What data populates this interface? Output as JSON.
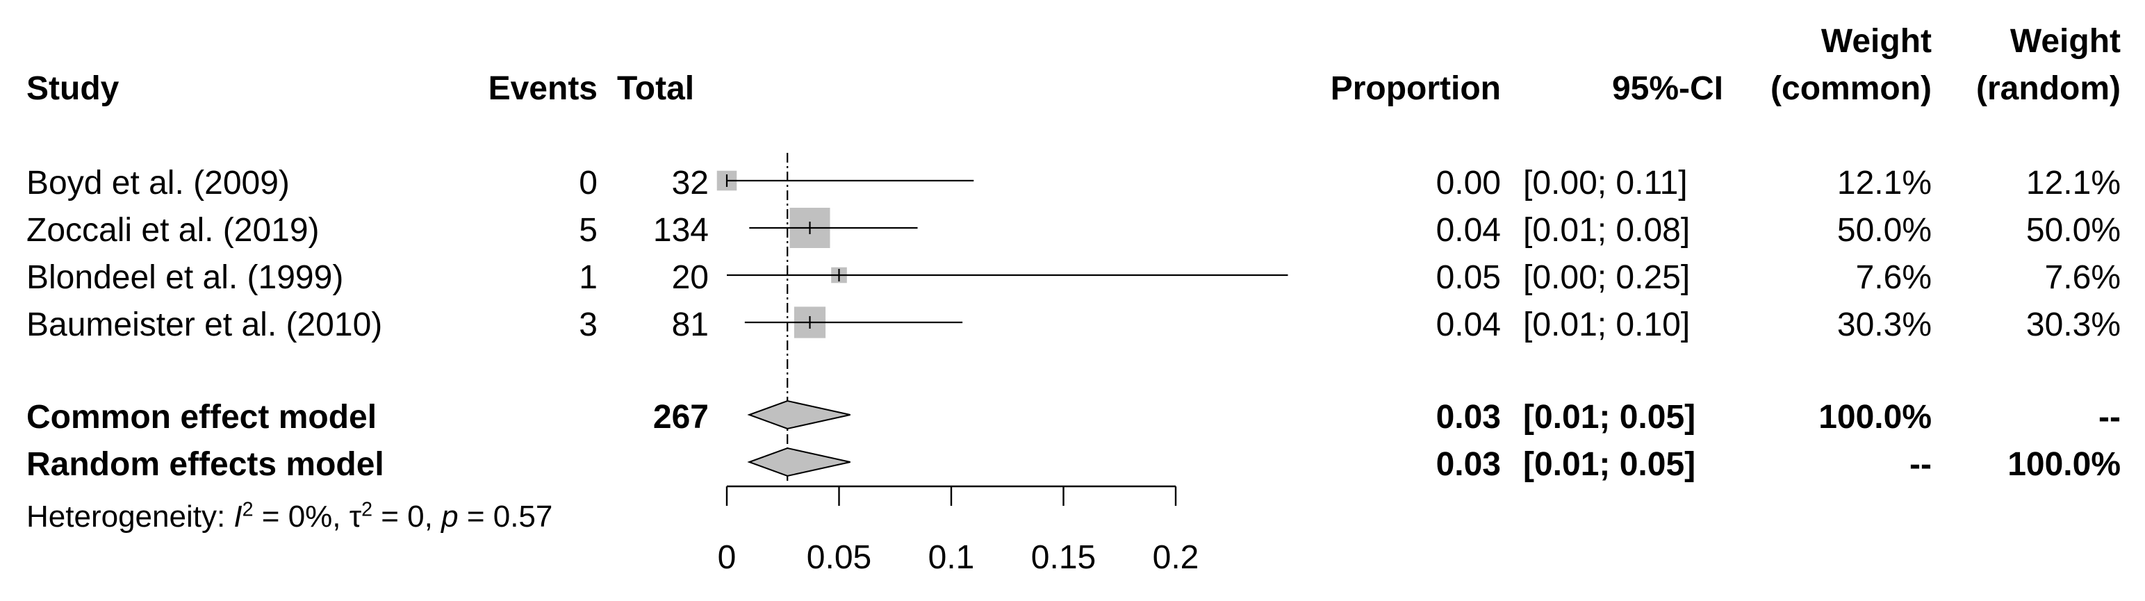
{
  "chart_data": {
    "type": "forest",
    "columns": {
      "study": "Study",
      "events": "Events",
      "total": "Total",
      "proportion": "Proportion",
      "ci": "95%-CI",
      "weight_common_line1": "Weight",
      "weight_common_line2": "(common)",
      "weight_random_line1": "Weight",
      "weight_random_line2": "(random)"
    },
    "studies": [
      {
        "study": "Boyd et al. (2009)",
        "events": "0",
        "total": "32",
        "proportion": "0.00",
        "ci": "[0.00; 0.11]",
        "weight_common": "12.1%",
        "weight_random": "12.1%",
        "est": 0.0,
        "lower": 0.0,
        "upper": 0.11,
        "weight": 12.1
      },
      {
        "study": "Zoccali et al. (2019)",
        "events": "5",
        "total": "134",
        "proportion": "0.04",
        "ci": "[0.01; 0.08]",
        "weight_common": "50.0%",
        "weight_random": "50.0%",
        "est": 0.037,
        "lower": 0.01,
        "upper": 0.085,
        "weight": 50.0
      },
      {
        "study": "Blondeel et al. (1999)",
        "events": "1",
        "total": "20",
        "proportion": "0.05",
        "ci": "[0.00; 0.25]",
        "weight_common": "7.6%",
        "weight_random": "7.6%",
        "est": 0.05,
        "lower": 0.0,
        "upper": 0.25,
        "weight": 7.6
      },
      {
        "study": "Baumeister et al. (2010)",
        "events": "3",
        "total": "81",
        "proportion": "0.04",
        "ci": "[0.01; 0.10]",
        "weight_common": "30.3%",
        "weight_random": "30.3%",
        "est": 0.037,
        "lower": 0.008,
        "upper": 0.105,
        "weight": 30.3
      }
    ],
    "models": [
      {
        "label": "Common effect model",
        "total": "267",
        "proportion": "0.03",
        "ci": "[0.01; 0.05]",
        "weight_common": "100.0%",
        "weight_random": "--",
        "est": 0.027,
        "lower": 0.01,
        "upper": 0.055
      },
      {
        "label": "Random effects model",
        "total": "",
        "proportion": "0.03",
        "ci": "[0.01; 0.05]",
        "weight_common": "--",
        "weight_random": "100.0%",
        "est": 0.027,
        "lower": 0.01,
        "upper": 0.055
      }
    ],
    "heterogeneity": {
      "prefix": "Heterogeneity: ",
      "i2_symbol": "I",
      "i2_value": " = 0%, ",
      "tau_symbol": "τ",
      "tau_value": " = 0, ",
      "p_symbol": "p",
      "p_value": " = 0.57"
    },
    "x_axis": {
      "range": [
        0,
        0.2
      ],
      "ticks": [
        0,
        0.05,
        0.1,
        0.15,
        0.2
      ],
      "tick_labels": [
        "0",
        "0.05",
        "0.1",
        "0.15",
        "0.2"
      ]
    },
    "reference_line": 0.027,
    "colors": {
      "box": "#c0c0c0",
      "diamond": "#c0c0c0",
      "line": "#000000"
    }
  }
}
